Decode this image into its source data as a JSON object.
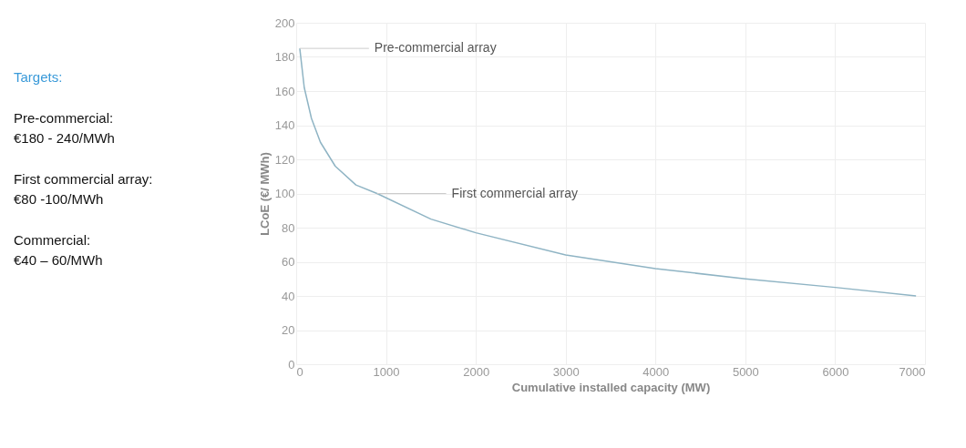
{
  "chart_data": {
    "type": "line",
    "xlabel": "Cumulative installed capacity (MW)",
    "ylabel": "LCoE (€/ MWh)",
    "x": [
      40,
      90,
      170,
      270,
      435,
      665,
      900,
      1500,
      2000,
      3000,
      4000,
      5000,
      6000,
      6900
    ],
    "series": [
      {
        "color": "#8fb4c4",
        "values": [
          185,
          162,
          144,
          130,
          116,
          105,
          100,
          85,
          77,
          64,
          56,
          50,
          45,
          40
        ]
      }
    ],
    "xlim": [
      0,
      7000
    ],
    "xticks": [
      0,
      1000,
      2000,
      3000,
      4000,
      5000,
      6000,
      7000
    ],
    "ylim": [
      0,
      200
    ],
    "yticks": [
      0,
      20,
      40,
      60,
      80,
      100,
      120,
      140,
      160,
      180,
      200
    ],
    "grid": true,
    "marker": "none",
    "line_style": "solid",
    "annotations": [
      {
        "text": "Pre-commercial array",
        "x": 40,
        "y": 185
      },
      {
        "text": "First commercial array",
        "x": 900,
        "y": 100
      },
      "Targets:",
      "Pre-commercial:",
      "€180 - 240/MWh",
      "First commercial array:",
      "€80 -100/MWh",
      "Commercial:",
      " €40 – 60/MWh"
    ]
  }
}
